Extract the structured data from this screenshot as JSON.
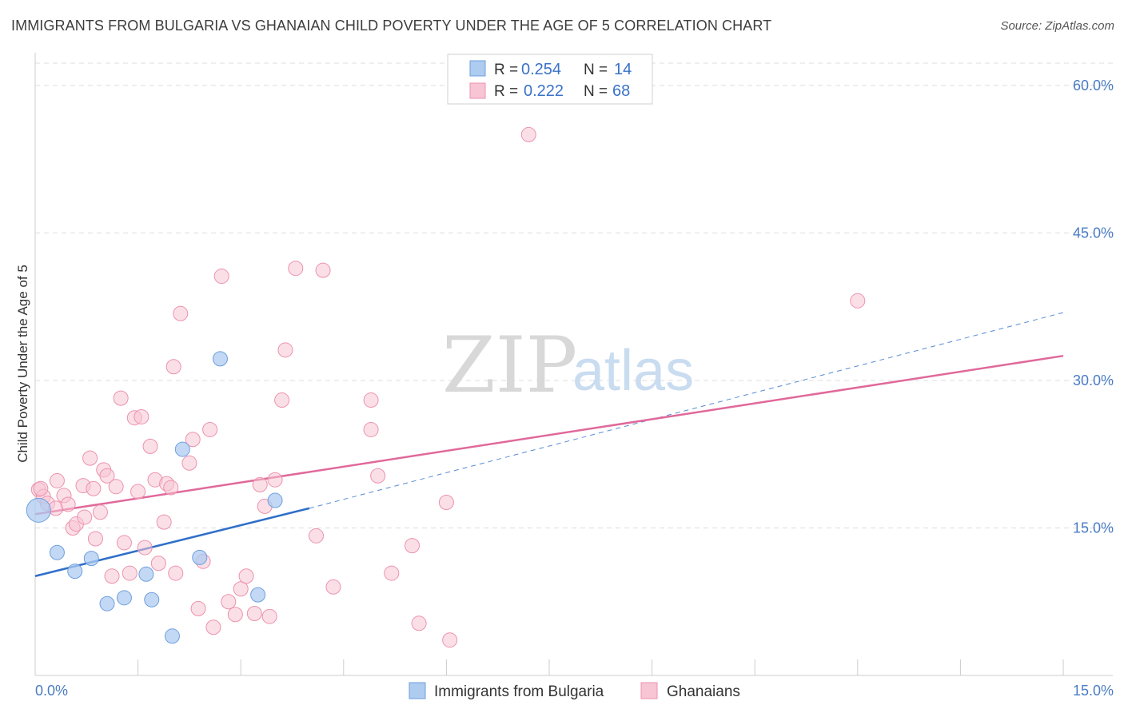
{
  "title": "IMMIGRANTS FROM BULGARIA VS GHANAIAN CHILD POVERTY UNDER THE AGE OF 5 CORRELATION CHART",
  "source": "Source: ZipAtlas.com",
  "watermark": {
    "zip": "ZIP",
    "atlas": "atlas"
  },
  "colors": {
    "blue_fill": "#aecbf0",
    "blue_stroke": "#6f9fdc",
    "blue_line": "#2f6fc9",
    "pink_fill": "#f7c5d4",
    "pink_stroke": "#ec92ae",
    "pink_line": "#e0699a",
    "tick_text": "#4a7cc4",
    "grid": "#dddddd"
  },
  "legend": {
    "rows": [
      {
        "r_label": "R =",
        "r_value": "0.254",
        "n_label": "N =",
        "n_value": "14"
      },
      {
        "r_label": "R =",
        "r_value": "0.222",
        "n_label": "N =",
        "n_value": "68"
      }
    ]
  },
  "bottom_legend": [
    "Immigrants from Bulgaria",
    "Ghanaians"
  ],
  "chart_data": {
    "type": "scatter",
    "title": "IMMIGRANTS FROM BULGARIA VS GHANAIAN CHILD POVERTY UNDER THE AGE OF 5 CORRELATION CHART",
    "xlabel": "",
    "ylabel": "Child Poverty Under the Age of 5",
    "xlim": [
      0,
      15
    ],
    "ylim": [
      0,
      63
    ],
    "x_tick_labels": [
      "0.0%",
      "15.0%"
    ],
    "y_ticks": [
      15,
      30,
      45,
      60
    ],
    "y_tick_labels": [
      "15.0%",
      "30.0%",
      "45.0%",
      "60.0%"
    ],
    "grid": true,
    "legend_position": "top-center",
    "series": [
      {
        "name": "Immigrants from Bulgaria",
        "points": [
          [
            0.05,
            16.8
          ],
          [
            0.32,
            12.5
          ],
          [
            0.58,
            10.6
          ],
          [
            0.82,
            11.9
          ],
          [
            1.05,
            7.3
          ],
          [
            1.3,
            7.9
          ],
          [
            1.62,
            10.3
          ],
          [
            1.7,
            7.7
          ],
          [
            2.0,
            4.0
          ],
          [
            2.15,
            23.0
          ],
          [
            2.4,
            12.0
          ],
          [
            2.7,
            32.2
          ],
          [
            3.25,
            8.2
          ],
          [
            3.5,
            17.8
          ]
        ],
        "trend": {
          "x": [
            0,
            4.0
          ],
          "y": [
            10.1,
            17.0
          ],
          "extended_to": [
            15,
            36.9
          ]
        }
      },
      {
        "name": "Ghanaians",
        "points": [
          [
            0.05,
            18.9
          ],
          [
            0.12,
            18.2
          ],
          [
            0.18,
            17.5
          ],
          [
            0.3,
            17.0
          ],
          [
            0.32,
            19.8
          ],
          [
            0.42,
            18.3
          ],
          [
            0.48,
            17.4
          ],
          [
            0.55,
            15.0
          ],
          [
            0.6,
            15.4
          ],
          [
            0.7,
            19.3
          ],
          [
            0.72,
            16.1
          ],
          [
            0.8,
            22.1
          ],
          [
            0.85,
            19.0
          ],
          [
            0.88,
            13.9
          ],
          [
            0.95,
            16.6
          ],
          [
            1.0,
            20.9
          ],
          [
            1.05,
            20.3
          ],
          [
            1.12,
            10.1
          ],
          [
            1.18,
            19.2
          ],
          [
            1.25,
            28.2
          ],
          [
            1.3,
            13.5
          ],
          [
            1.38,
            10.4
          ],
          [
            1.45,
            26.2
          ],
          [
            1.5,
            18.7
          ],
          [
            1.55,
            26.3
          ],
          [
            1.6,
            13.0
          ],
          [
            1.68,
            23.3
          ],
          [
            1.75,
            19.9
          ],
          [
            1.8,
            11.4
          ],
          [
            1.88,
            15.6
          ],
          [
            1.92,
            19.5
          ],
          [
            1.98,
            19.1
          ],
          [
            2.02,
            31.4
          ],
          [
            2.05,
            10.4
          ],
          [
            2.12,
            36.8
          ],
          [
            2.25,
            21.6
          ],
          [
            2.3,
            24.0
          ],
          [
            2.38,
            6.8
          ],
          [
            2.45,
            11.6
          ],
          [
            2.55,
            25.0
          ],
          [
            2.6,
            4.9
          ],
          [
            2.72,
            40.6
          ],
          [
            2.82,
            7.5
          ],
          [
            2.92,
            6.2
          ],
          [
            3.0,
            8.8
          ],
          [
            3.08,
            10.1
          ],
          [
            3.2,
            6.3
          ],
          [
            3.28,
            19.4
          ],
          [
            3.35,
            17.2
          ],
          [
            3.42,
            6.0
          ],
          [
            3.5,
            19.9
          ],
          [
            3.6,
            28.0
          ],
          [
            3.65,
            33.1
          ],
          [
            3.8,
            41.4
          ],
          [
            4.1,
            14.2
          ],
          [
            4.2,
            41.2
          ],
          [
            4.35,
            9.0
          ],
          [
            4.9,
            28.0
          ],
          [
            4.9,
            25.0
          ],
          [
            5.0,
            20.3
          ],
          [
            5.2,
            10.4
          ],
          [
            5.5,
            13.2
          ],
          [
            5.6,
            5.3
          ],
          [
            6.0,
            17.6
          ],
          [
            6.05,
            3.6
          ],
          [
            7.2,
            55.0
          ],
          [
            12.0,
            38.1
          ],
          [
            0.08,
            19.0
          ]
        ],
        "trend": {
          "x": [
            0,
            15
          ],
          "y": [
            16.4,
            32.5
          ]
        }
      }
    ]
  }
}
